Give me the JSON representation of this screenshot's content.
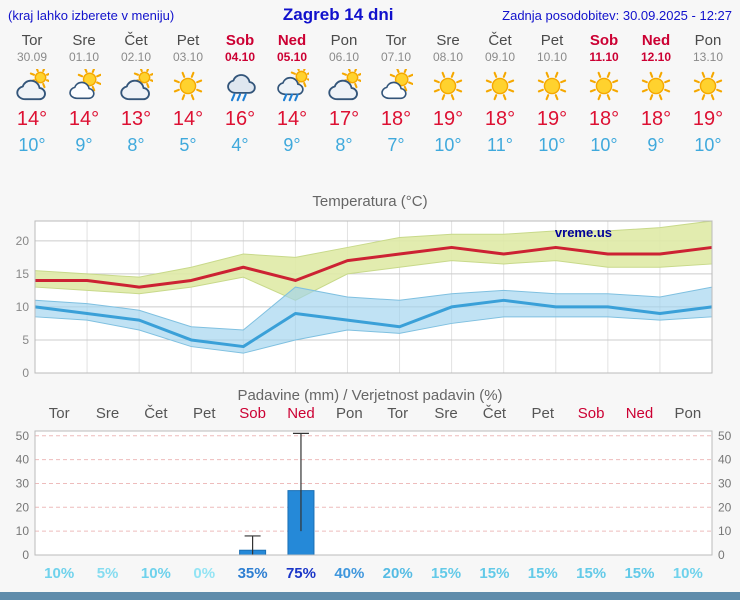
{
  "header": {
    "hint": "(kraj lahko izberete v meniju)",
    "title": "Zagreb 14 dni",
    "updated": "Zadnja posodobitev: 30.09.2025 - 12:27"
  },
  "watermark": "vreme.us",
  "forecast": {
    "days": [
      {
        "name": "Tor",
        "date": "30.09",
        "weekend": false,
        "icon": "mostly-cloudy",
        "tmax": "14°",
        "tmin": "10°"
      },
      {
        "name": "Sre",
        "date": "01.10",
        "weekend": false,
        "icon": "partly-cloudy",
        "tmax": "14°",
        "tmin": "9°"
      },
      {
        "name": "Čet",
        "date": "02.10",
        "weekend": false,
        "icon": "mostly-cloudy",
        "tmax": "13°",
        "tmin": "8°"
      },
      {
        "name": "Pet",
        "date": "03.10",
        "weekend": false,
        "icon": "sunny",
        "tmax": "14°",
        "tmin": "5°"
      },
      {
        "name": "Sob",
        "date": "04.10",
        "weekend": true,
        "icon": "rain",
        "tmax": "16°",
        "tmin": "4°"
      },
      {
        "name": "Ned",
        "date": "05.10",
        "weekend": true,
        "icon": "rain-sun",
        "tmax": "14°",
        "tmin": "9°"
      },
      {
        "name": "Pon",
        "date": "06.10",
        "weekend": false,
        "icon": "mostly-cloudy",
        "tmax": "17°",
        "tmin": "8°"
      },
      {
        "name": "Tor",
        "date": "07.10",
        "weekend": false,
        "icon": "partly-cloudy",
        "tmax": "18°",
        "tmin": "7°"
      },
      {
        "name": "Sre",
        "date": "08.10",
        "weekend": false,
        "icon": "sunny",
        "tmax": "19°",
        "tmin": "10°"
      },
      {
        "name": "Čet",
        "date": "09.10",
        "weekend": false,
        "icon": "sunny",
        "tmax": "18°",
        "tmin": "11°"
      },
      {
        "name": "Pet",
        "date": "10.10",
        "weekend": false,
        "icon": "sunny",
        "tmax": "19°",
        "tmin": "10°"
      },
      {
        "name": "Sob",
        "date": "11.10",
        "weekend": true,
        "icon": "sunny",
        "tmax": "18°",
        "tmin": "10°"
      },
      {
        "name": "Ned",
        "date": "12.10",
        "weekend": true,
        "icon": "sunny",
        "tmax": "18°",
        "tmin": "9°"
      },
      {
        "name": "Pon",
        "date": "13.10",
        "weekend": false,
        "icon": "sunny",
        "tmax": "19°",
        "tmin": "10°"
      }
    ]
  },
  "chart_data": [
    {
      "type": "line",
      "title": "Temperatura (°C)",
      "categories": [
        "Tor 30.09",
        "Sre 01.10",
        "Čet 02.10",
        "Pet 03.10",
        "Sob 04.10",
        "Ned 05.10",
        "Pon 06.10",
        "Tor 07.10",
        "Sre 08.10",
        "Čet 09.10",
        "Pet 10.10",
        "Sob 11.10",
        "Ned 12.10",
        "Pon 13.10"
      ],
      "series": [
        {
          "name": "max-temperature-line",
          "color": "#cc2233",
          "values": [
            14,
            14,
            13,
            14,
            16,
            14,
            17,
            18,
            19,
            18,
            19,
            18,
            18,
            19
          ]
        },
        {
          "name": "min-temperature-line",
          "color": "#3aa0d8",
          "values": [
            10,
            9,
            8,
            5,
            4,
            9,
            8,
            7,
            10,
            11,
            10,
            10,
            9,
            10
          ]
        }
      ],
      "bands": [
        {
          "name": "max-temperature-range",
          "color": "#dfeaa6",
          "edge": "#c8d98a",
          "opacity": 0.9,
          "upper": [
            15.5,
            15,
            14.5,
            16,
            18,
            17.5,
            19,
            20.5,
            21,
            21,
            21.5,
            21.5,
            22,
            23
          ],
          "lower": [
            13,
            12.5,
            12,
            13,
            14.5,
            11,
            15,
            16,
            17,
            16.5,
            17,
            16,
            16,
            16.5
          ]
        },
        {
          "name": "min-temperature-range",
          "color": "#9ed2ee",
          "edge": "#7fc0e0",
          "opacity": 0.65,
          "upper": [
            11,
            10.5,
            9.5,
            7,
            6.5,
            13,
            11.5,
            11,
            12,
            12.5,
            12,
            12,
            11.5,
            13
          ],
          "lower": [
            8.5,
            8,
            6.5,
            4,
            3,
            5,
            6.5,
            6,
            7.5,
            8.5,
            8.5,
            8.5,
            8,
            8.5
          ]
        }
      ],
      "ylim": [
        0,
        23
      ],
      "yticks": [
        0,
        5,
        10,
        15,
        20
      ],
      "grid": true,
      "legend": "none"
    },
    {
      "type": "bar",
      "title": "Padavine (mm) / Verjetnost padavin (%)",
      "categories": [
        "Tor",
        "Sre",
        "Čet",
        "Pet",
        "Sob",
        "Ned",
        "Pon",
        "Tor",
        "Sre",
        "Čet",
        "Pet",
        "Sob",
        "Ned",
        "Pon"
      ],
      "weekend_flags": [
        false,
        false,
        false,
        false,
        true,
        true,
        false,
        false,
        false,
        false,
        false,
        true,
        true,
        false
      ],
      "values": [
        0,
        0,
        0,
        0,
        2,
        27,
        0,
        0,
        0,
        0,
        0,
        0,
        0,
        0
      ],
      "whiskers": [
        [
          0,
          0
        ],
        [
          0,
          0
        ],
        [
          0,
          0
        ],
        [
          0,
          0
        ],
        [
          0,
          8
        ],
        [
          10,
          51
        ],
        [
          0,
          0
        ],
        [
          0,
          0
        ],
        [
          0,
          0
        ],
        [
          0,
          0
        ],
        [
          0,
          0
        ],
        [
          0,
          0
        ],
        [
          0,
          0
        ],
        [
          0,
          0
        ]
      ],
      "bar_color": "#2589d8",
      "bar_edge": "#1b6fb4",
      "probabilities": [
        {
          "label": "10%",
          "color": "#6fd2ec"
        },
        {
          "label": "5%",
          "color": "#85dcf0"
        },
        {
          "label": "10%",
          "color": "#6fd2ec"
        },
        {
          "label": "0%",
          "color": "#93e4f4"
        },
        {
          "label": "35%",
          "color": "#2e7fd2"
        },
        {
          "label": "75%",
          "color": "#1a36c8"
        },
        {
          "label": "40%",
          "color": "#3f97dd"
        },
        {
          "label": "20%",
          "color": "#55bce4"
        },
        {
          "label": "15%",
          "color": "#63cae8"
        },
        {
          "label": "15%",
          "color": "#63cae8"
        },
        {
          "label": "15%",
          "color": "#63cae8"
        },
        {
          "label": "15%",
          "color": "#63cae8"
        },
        {
          "label": "15%",
          "color": "#63cae8"
        },
        {
          "label": "10%",
          "color": "#6fd2ec"
        }
      ],
      "ylim": [
        0,
        52
      ],
      "yticks": [
        0,
        10,
        20,
        30,
        40,
        50
      ],
      "grid": "dashed",
      "xlabel": "",
      "ylabel": ""
    }
  ]
}
